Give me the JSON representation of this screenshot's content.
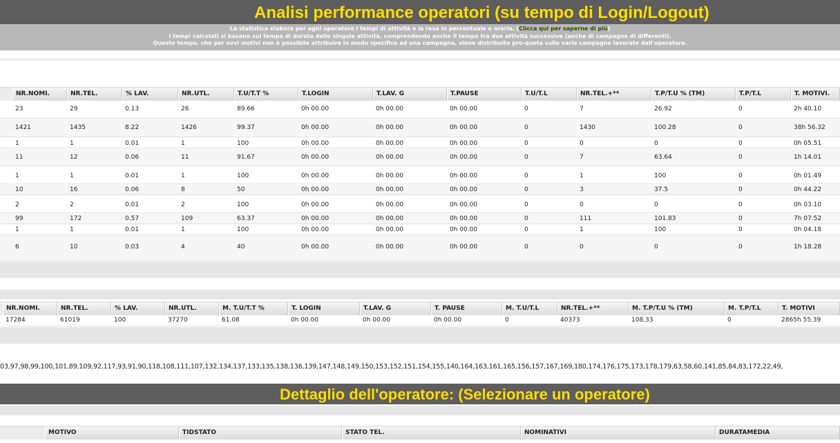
{
  "header": {
    "title": "Analisi performance operatori (su tempo di Login/Logout)",
    "desc_line1": "La statistica elabora per ogni operatore i tempi di attività e la resa in percentuale e oraria. (",
    "desc_link": "Clicca qui per saperne di più",
    "desc_line1_end": ")",
    "desc_line2": "I tempi calcolati si basano sul tempo di durata delle singole attività, comprendendo anche il tempo tra due attività successive (anche di campagne di differenti).",
    "desc_line3": "Questo tempo, che per ovvi motivi non è possibile attribuire in modo specifico ad una campagna, viene distribuito pro-quota sulle varie campagne lavorate dall'operatore."
  },
  "operators_table": {
    "columns": [
      "NR.NOMI.",
      "NR.TEL.",
      "% LAV.",
      "NR.UTL.",
      "T.U/T.T %",
      "T.LOGIN",
      "T.LAV. G",
      "T.PAUSE",
      "T.U/T.L",
      "NR.TEL.+**",
      "T.P/T.U % (TM)",
      "T.P/T.L",
      "T. MOTIVI."
    ],
    "rows": [
      [
        "23",
        "29",
        "0.13",
        "26",
        "89.66",
        "0h 00.00",
        "0h 00.00",
        "0h 00.00",
        "0",
        "7",
        "26.92",
        "0",
        "2h 40.10"
      ],
      [
        "1421",
        "1435",
        "8.22",
        "1426",
        "99.37",
        "0h 00.00",
        "0h 00.00",
        "0h 00.00",
        "0",
        "1430",
        "100.28",
        "0",
        "38h 56.32"
      ],
      [
        "1",
        "1",
        "0.01",
        "1",
        "100",
        "0h 00.00",
        "0h 00.00",
        "0h 00.00",
        "0",
        "0",
        "0",
        "0",
        "0h 05.51"
      ],
      [
        "11",
        "12",
        "0.06",
        "11",
        "91.67",
        "0h 00.00",
        "0h 00.00",
        "0h 00.00",
        "0",
        "7",
        "63.64",
        "0",
        "1h 14.01"
      ],
      [
        "1",
        "1",
        "0.01",
        "1",
        "100",
        "0h 00.00",
        "0h 00.00",
        "0h 00.00",
        "0",
        "1",
        "100",
        "0",
        "0h 01.49"
      ],
      [
        "10",
        "16",
        "0.06",
        "8",
        "50",
        "0h 00.00",
        "0h 00.00",
        "0h 00.00",
        "0",
        "3",
        "37.5",
        "0",
        "0h 44.22"
      ],
      [
        "2",
        "2",
        "0.01",
        "2",
        "100",
        "0h 00.00",
        "0h 00.00",
        "0h 00.00",
        "0",
        "0",
        "0",
        "0",
        "0h 03.10"
      ],
      [
        "99",
        "172",
        "0.57",
        "109",
        "63.37",
        "0h 00.00",
        "0h 00.00",
        "0h 00.00",
        "0",
        "111",
        "101.83",
        "0",
        "7h 07.52"
      ],
      [
        "1",
        "1",
        "0.01",
        "1",
        "100",
        "0h 00.00",
        "0h 00.00",
        "0h 00.00",
        "0",
        "1",
        "100",
        "0",
        "0h 04.18"
      ],
      [
        "6",
        "10",
        "0.03",
        "4",
        "40",
        "0h 00.00",
        "0h 00.00",
        "0h 00.00",
        "0",
        "0",
        "0",
        "0",
        "1h 18.28"
      ]
    ]
  },
  "totals_table": {
    "columns": [
      "NR.NOMI.",
      "NR.TEL.",
      "% LAV.",
      "NR.UTL.",
      "M. T.U/T.T %",
      "T. LOGIN",
      "T.LAV. G",
      "T. PAUSE",
      "M. T.U/T.L",
      "NR.TEL.+**",
      "M. T.P/T.U % (TM)",
      "M. T.P/T.L",
      "T. MOTIVI"
    ],
    "row": [
      "17284",
      "61019",
      "100",
      "37270",
      "61.08",
      "0h 00.00",
      "0h 00.00",
      "0h 00.00",
      "0",
      "40373",
      "108.33",
      "0",
      "2865h 55.39"
    ]
  },
  "ids_line": "03,97,98,99,100,101,89,109,92,117,93,91,90,118,108,111,107,132,134,137,133,135,138,136,139,147,148,149,150,153,152,151,154,155,140,164,163,161,165,156,157,167,169,180,174,176,175,173,178,179,63,58,60,141,85,84,83,172,22,49,",
  "detail": {
    "title": "Dettaglio dell'operatore: (Selezionare un operatore)",
    "columns": [
      "MOTIVO",
      "TIDSTATO",
      "STATO TEL.",
      "NOMINATIVI",
      "DURATAMEDIA"
    ]
  }
}
